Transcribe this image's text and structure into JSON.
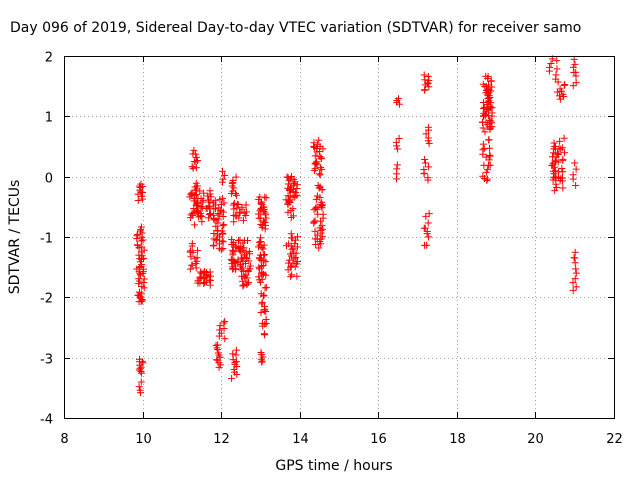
{
  "chart_data": {
    "type": "scatter",
    "title": "Day 096 of 2019, Sidereal Day-to-day VTEC variation (SDTVAR) for receiver samo",
    "xlabel": "GPS time / hours",
    "ylabel": "SDTVAR / TECUs",
    "xlim": [
      8,
      22
    ],
    "ylim": [
      -4,
      2
    ],
    "xticks": [
      8,
      10,
      12,
      14,
      16,
      18,
      20,
      22
    ],
    "yticks": [
      -4,
      -3,
      -2,
      -1,
      0,
      1,
      2
    ],
    "xtick_labels": [
      "8",
      "10",
      "12",
      "14",
      "16",
      "18",
      "20",
      "22"
    ],
    "ytick_labels": [
      "-4",
      "-3",
      "-2",
      "-1",
      "0",
      "1",
      "2"
    ],
    "grid": true,
    "marker": "plus",
    "color": "#ff0000",
    "series": [
      {
        "name": "SDTVAR",
        "clusters": [
          {
            "x": [
              9.88,
              10.02
            ],
            "y": [
              -0.4,
              -0.1
            ],
            "n": 12
          },
          {
            "x": [
              9.85,
              10.05
            ],
            "y": [
              -1.9,
              -0.8
            ],
            "n": 40
          },
          {
            "x": [
              9.88,
              10.02
            ],
            "y": [
              -2.1,
              -1.9
            ],
            "n": 10
          },
          {
            "x": [
              9.9,
              10.02
            ],
            "y": [
              -3.3,
              -3.0
            ],
            "n": 10
          },
          {
            "x": [
              9.9,
              9.98
            ],
            "y": [
              -3.6,
              -3.4
            ],
            "n": 4
          },
          {
            "x": [
              11.25,
              11.4
            ],
            "y": [
              0.1,
              0.45
            ],
            "n": 10
          },
          {
            "x": [
              11.2,
              11.45
            ],
            "y": [
              -0.8,
              -0.1
            ],
            "n": 30
          },
          {
            "x": [
              11.4,
              11.75
            ],
            "y": [
              -0.75,
              -0.2
            ],
            "n": 30
          },
          {
            "x": [
              11.2,
              11.4
            ],
            "y": [
              -1.6,
              -1.1
            ],
            "n": 15
          },
          {
            "x": [
              11.4,
              11.75
            ],
            "y": [
              -1.8,
              -1.55
            ],
            "n": 25
          },
          {
            "x": [
              11.8,
              12.1
            ],
            "y": [
              -1.3,
              -0.3
            ],
            "n": 45
          },
          {
            "x": [
              12.0,
              12.1
            ],
            "y": [
              -0.1,
              0.1
            ],
            "n": 4
          },
          {
            "x": [
              11.85,
              12.0
            ],
            "y": [
              -3.2,
              -2.75
            ],
            "n": 12
          },
          {
            "x": [
              11.95,
              12.1
            ],
            "y": [
              -2.7,
              -2.35
            ],
            "n": 8
          },
          {
            "x": [
              12.25,
              12.4
            ],
            "y": [
              -0.35,
              0.0
            ],
            "n": 10
          },
          {
            "x": [
              12.3,
              12.65
            ],
            "y": [
              -0.75,
              -0.4
            ],
            "n": 20
          },
          {
            "x": [
              12.25,
              12.75
            ],
            "y": [
              -1.6,
              -1.0
            ],
            "n": 55
          },
          {
            "x": [
              12.5,
              12.7
            ],
            "y": [
              -1.85,
              -1.5
            ],
            "n": 15
          },
          {
            "x": [
              12.25,
              12.4
            ],
            "y": [
              -3.35,
              -2.85
            ],
            "n": 12
          },
          {
            "x": [
              12.95,
              13.15
            ],
            "y": [
              -0.9,
              -0.3
            ],
            "n": 30
          },
          {
            "x": [
              12.95,
              13.15
            ],
            "y": [
              -1.8,
              -1.0
            ],
            "n": 30
          },
          {
            "x": [
              13.0,
              13.15
            ],
            "y": [
              -2.7,
              -1.8
            ],
            "n": 20
          },
          {
            "x": [
              13.0,
              13.1
            ],
            "y": [
              -3.1,
              -2.9
            ],
            "n": 6
          },
          {
            "x": [
              13.65,
              13.95
            ],
            "y": [
              -0.5,
              0.05
            ],
            "n": 35
          },
          {
            "x": [
              13.7,
              13.85
            ],
            "y": [
              -0.7,
              -0.5
            ],
            "n": 5
          },
          {
            "x": [
              13.65,
              13.95
            ],
            "y": [
              -1.7,
              -0.9
            ],
            "n": 30
          },
          {
            "x": [
              14.35,
              14.6
            ],
            "y": [
              0.0,
              0.65
            ],
            "n": 25
          },
          {
            "x": [
              14.35,
              14.6
            ],
            "y": [
              -1.25,
              -0.05
            ],
            "n": 40
          },
          {
            "x": [
              16.45,
              16.55
            ],
            "y": [
              1.2,
              1.3
            ],
            "n": 4
          },
          {
            "x": [
              16.45,
              16.55
            ],
            "y": [
              0.45,
              0.65
            ],
            "n": 4
          },
          {
            "x": [
              16.45,
              16.55
            ],
            "y": [
              -0.05,
              0.2
            ],
            "n": 4
          },
          {
            "x": [
              17.15,
              17.3
            ],
            "y": [
              1.4,
              1.7
            ],
            "n": 10
          },
          {
            "x": [
              17.15,
              17.3
            ],
            "y": [
              0.5,
              0.85
            ],
            "n": 6
          },
          {
            "x": [
              17.15,
              17.3
            ],
            "y": [
              -0.1,
              0.3
            ],
            "n": 8
          },
          {
            "x": [
              17.15,
              17.3
            ],
            "y": [
              -1.2,
              -0.6
            ],
            "n": 10
          },
          {
            "x": [
              18.65,
              18.9
            ],
            "y": [
              0.7,
              1.7
            ],
            "n": 60
          },
          {
            "x": [
              18.65,
              18.85
            ],
            "y": [
              -0.15,
              0.7
            ],
            "n": 20
          },
          {
            "x": [
              20.35,
              20.55
            ],
            "y": [
              1.6,
              2.0
            ],
            "n": 8
          },
          {
            "x": [
              20.55,
              20.75
            ],
            "y": [
              1.25,
              1.6
            ],
            "n": 10
          },
          {
            "x": [
              20.4,
              20.75
            ],
            "y": [
              -0.25,
              0.65
            ],
            "n": 45
          },
          {
            "x": [
              20.95,
              21.05
            ],
            "y": [
              1.5,
              1.95
            ],
            "n": 8
          },
          {
            "x": [
              20.95,
              21.05
            ],
            "y": [
              -0.15,
              0.25
            ],
            "n": 5
          },
          {
            "x": [
              20.95,
              21.05
            ],
            "y": [
              -1.95,
              -1.2
            ],
            "n": 10
          }
        ]
      }
    ]
  }
}
